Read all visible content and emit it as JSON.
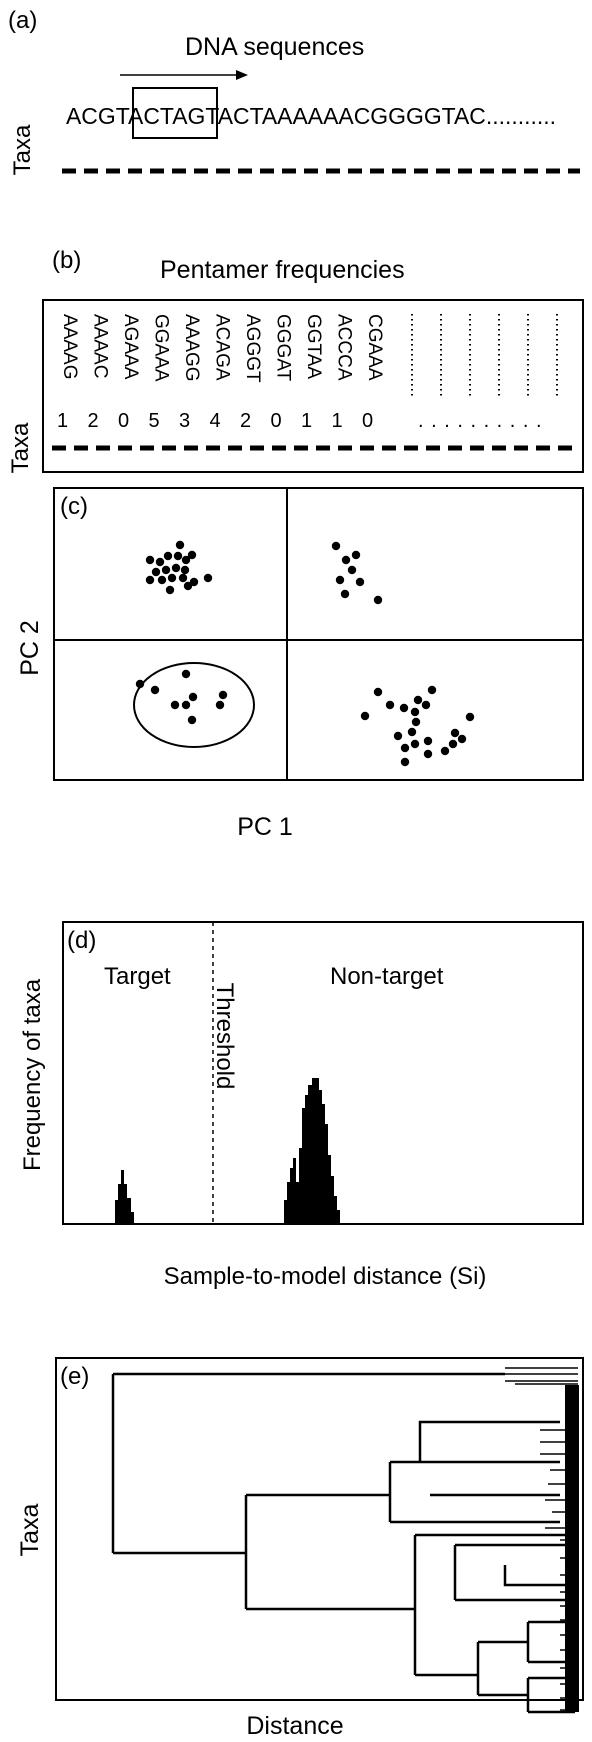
{
  "panels": {
    "a": {
      "label": "(a)",
      "title": "DNA sequences",
      "ylabel": "Taxa",
      "sequence": "ACGTACTAGTACTAAAAAACGGGGTAC...........",
      "window_text": "ACTAG"
    },
    "b": {
      "label": "(b)",
      "title": "Pentamer frequencies",
      "ylabel": "Taxa",
      "pentamers": [
        "AAAAG",
        "AAAAC",
        "AGAAA",
        "GGAAA",
        "AAAGG",
        "ACAGA",
        "AGGGT",
        "GGGAT",
        "GGTAA",
        "ACCCA",
        "CGAAA"
      ],
      "counts": [
        "1",
        "2",
        "0",
        "5",
        "3",
        "4",
        "2",
        "0",
        "1",
        "1",
        "0"
      ],
      "continuation": ". . . . . . . . . ."
    },
    "c": {
      "label": "(c)",
      "xlabel": "PC 1",
      "ylabel": "PC 2",
      "clusters": [
        {
          "quadrant": "upper-left",
          "n_points": 19
        },
        {
          "quadrant": "upper-right",
          "n_points": 8
        },
        {
          "quadrant": "lower-left",
          "n_points": 9,
          "circled": true
        },
        {
          "quadrant": "lower-right",
          "n_points": 21
        }
      ]
    },
    "d": {
      "label": "(d)",
      "xlabel": "Sample-to-model distance (Si)",
      "ylabel": "Frequency of taxa",
      "target_label": "Target",
      "nontarget_label": "Non-target",
      "threshold_label": "Threshold"
    },
    "e": {
      "label": "(e)",
      "xlabel": "Distance",
      "ylabel": "Taxa"
    }
  }
}
